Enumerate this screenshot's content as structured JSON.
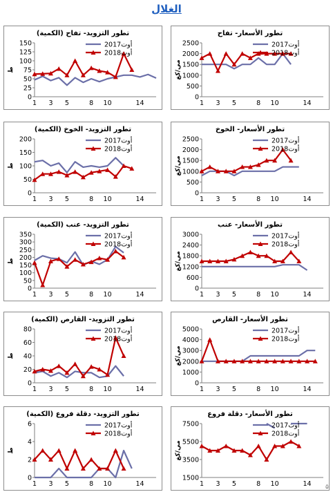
{
  "page": {
    "title": "الغلال",
    "corner_mark": "۵"
  },
  "colors": {
    "series_2017": "#6b6fa8",
    "series_2018": "#c00000",
    "title": "#1f5fbf"
  },
  "chart_data": [
    {
      "type": "line",
      "title": "تطور التزويد- تفاح (الكمية)",
      "ylabel": "ط",
      "x": [
        1,
        2,
        3,
        4,
        5,
        6,
        7,
        8,
        9,
        10,
        11,
        12,
        13,
        14,
        15,
        16
      ],
      "xticks": [
        1,
        3,
        5,
        8,
        10,
        14
      ],
      "yticks": [
        0,
        25,
        50,
        75,
        100,
        125,
        150
      ],
      "ylim": [
        0,
        150
      ],
      "legend_position": "top-right",
      "series": [
        {
          "name": "أوت2017",
          "values": [
            47,
            57,
            45,
            53,
            32,
            53,
            40,
            50,
            42,
            50,
            55,
            60,
            60,
            55,
            62,
            52
          ]
        },
        {
          "name": "أوت2018",
          "values": [
            63,
            64,
            65,
            78,
            60,
            100,
            60,
            80,
            72,
            68,
            55,
            120,
            75,
            null,
            null,
            null
          ]
        }
      ]
    },
    {
      "type": "line",
      "title": "تطور الأسعار- تفاح",
      "ylabel": "مي/كغ",
      "x": [
        1,
        2,
        3,
        4,
        5,
        6,
        7,
        8,
        9,
        10,
        11,
        12,
        13,
        14,
        15,
        16
      ],
      "xticks": [
        1,
        3,
        5,
        8,
        10,
        14
      ],
      "yticks": [
        0,
        500,
        1000,
        1500,
        2000,
        2500
      ],
      "ylim": [
        0,
        2500
      ],
      "legend_position": "top-right",
      "series": [
        {
          "name": "أوت2017",
          "values": [
            1500,
            1500,
            1500,
            1500,
            1300,
            1500,
            1500,
            1800,
            1500,
            1500,
            2000,
            1500,
            null,
            null,
            null,
            null
          ]
        },
        {
          "name": "أوت2018",
          "values": [
            1800,
            2000,
            1200,
            2000,
            1500,
            2000,
            1800,
            2000,
            2000,
            2000,
            2000,
            2000,
            null,
            null,
            null,
            null
          ]
        }
      ]
    },
    {
      "type": "line",
      "title": "تطور التزويد- الخوخ (الكمية)",
      "ylabel": "ط",
      "x": [
        1,
        2,
        3,
        4,
        5,
        6,
        7,
        8,
        9,
        10,
        11,
        12,
        13,
        14,
        15,
        16
      ],
      "xticks": [
        1,
        3,
        5,
        8,
        10,
        14
      ],
      "yticks": [
        0,
        50,
        100,
        150,
        200
      ],
      "ylim": [
        0,
        200
      ],
      "legend_position": "top-right",
      "series": [
        {
          "name": "أوت2017",
          "values": [
            115,
            120,
            100,
            110,
            75,
            115,
            95,
            100,
            95,
            100,
            130,
            100,
            null,
            null,
            null,
            null
          ]
        },
        {
          "name": "أوت2018",
          "values": [
            48,
            70,
            70,
            78,
            65,
            78,
            58,
            75,
            80,
            85,
            60,
            100,
            90,
            null,
            null,
            null
          ]
        }
      ]
    },
    {
      "type": "line",
      "title": "تطور الأسعار- الخوخ",
      "ylabel": "مي/كغ",
      "x": [
        1,
        2,
        3,
        4,
        5,
        6,
        7,
        8,
        9,
        10,
        11,
        12,
        13,
        14,
        15,
        16
      ],
      "xticks": [
        1,
        3,
        5,
        8,
        10,
        14
      ],
      "yticks": [
        0,
        500,
        1000,
        1500,
        2000,
        2500
      ],
      "ylim": [
        0,
        2500
      ],
      "legend_position": "top-right",
      "series": [
        {
          "name": "أوت2017",
          "values": [
            800,
            1000,
            1000,
            1000,
            800,
            1000,
            1000,
            1000,
            1000,
            1000,
            1200,
            1200,
            1200,
            null,
            null,
            null
          ]
        },
        {
          "name": "أوت2018",
          "values": [
            1000,
            1200,
            1000,
            1000,
            1000,
            1200,
            1200,
            1300,
            1500,
            1500,
            2000,
            1500,
            null,
            null,
            null,
            null
          ]
        }
      ]
    },
    {
      "type": "line",
      "title": "تطور التزويد- عنب (الكمية)",
      "ylabel": "ط",
      "x": [
        1,
        2,
        3,
        4,
        5,
        6,
        7,
        8,
        9,
        10,
        11,
        12,
        13,
        14,
        15,
        16
      ],
      "xticks": [
        1,
        3,
        5,
        8,
        10,
        14
      ],
      "yticks": [
        0,
        50,
        100,
        150,
        200,
        250,
        300,
        350
      ],
      "ylim": [
        0,
        350
      ],
      "legend_position": "top-right",
      "series": [
        {
          "name": "أوت2017",
          "values": [
            180,
            210,
            195,
            190,
            165,
            235,
            150,
            175,
            155,
            185,
            270,
            230,
            null,
            null,
            null,
            null
          ]
        },
        {
          "name": "أوت2018",
          "values": [
            165,
            20,
            175,
            190,
            140,
            185,
            155,
            170,
            195,
            185,
            240,
            200,
            null,
            null,
            null,
            null
          ]
        }
      ]
    },
    {
      "type": "line",
      "title": "تطور الأسعار- عنب",
      "ylabel": "مي/كغ",
      "x": [
        1,
        2,
        3,
        4,
        5,
        6,
        7,
        8,
        9,
        10,
        11,
        12,
        13,
        14,
        15,
        16
      ],
      "xticks": [
        1,
        3,
        5,
        8,
        10,
        14
      ],
      "yticks": [
        0,
        600,
        1200,
        1800,
        2400,
        3000
      ],
      "ylim": [
        0,
        3000
      ],
      "legend_position": "top-right",
      "series": [
        {
          "name": "أوت2017",
          "values": [
            1200,
            1200,
            1200,
            1200,
            1200,
            1200,
            1200,
            1200,
            1200,
            1200,
            1300,
            1300,
            1300,
            1000,
            null,
            null
          ]
        },
        {
          "name": "أوت2018",
          "values": [
            1500,
            1500,
            1500,
            1500,
            1600,
            1800,
            2000,
            1800,
            1800,
            1500,
            1500,
            2000,
            1500,
            null,
            null,
            null
          ]
        }
      ]
    },
    {
      "type": "line",
      "title": "تطور التزويد- القارص (الكمية)",
      "ylabel": "ط",
      "x": [
        1,
        2,
        3,
        4,
        5,
        6,
        7,
        8,
        9,
        10,
        11,
        12,
        13,
        14,
        15,
        16
      ],
      "xticks": [
        1,
        3,
        5,
        8,
        10,
        14
      ],
      "yticks": [
        0,
        20,
        40,
        60,
        80
      ],
      "ylim": [
        0,
        80
      ],
      "legend_position": "top-right",
      "series": [
        {
          "name": "أوت2017",
          "values": [
            15,
            17,
            10,
            15,
            8,
            17,
            15,
            15,
            8,
            10,
            25,
            10,
            null,
            null,
            null,
            null
          ]
        },
        {
          "name": "أوت2018",
          "values": [
            17,
            20,
            18,
            25,
            15,
            28,
            10,
            24,
            20,
            12,
            67,
            40,
            null,
            null,
            null,
            null
          ]
        }
      ]
    },
    {
      "type": "line",
      "title": "تطور الأسعار- القارص",
      "ylabel": "مي/كغ",
      "x": [
        1,
        2,
        3,
        4,
        5,
        6,
        7,
        8,
        9,
        10,
        11,
        12,
        13,
        14,
        15,
        16
      ],
      "xticks": [
        1,
        3,
        5,
        8,
        10,
        14
      ],
      "yticks": [
        0,
        1000,
        2000,
        3000,
        4000,
        5000
      ],
      "ylim": [
        0,
        5000
      ],
      "legend_position": "top-right",
      "series": [
        {
          "name": "أوت2017",
          "values": [
            2000,
            2000,
            2000,
            2000,
            2000,
            2000,
            2500,
            2500,
            2500,
            2500,
            2500,
            2500,
            2500,
            3000,
            3000,
            null
          ]
        },
        {
          "name": "أوت2018",
          "values": [
            2000,
            4000,
            2000,
            2000,
            2000,
            2000,
            2000,
            2000,
            2000,
            2000,
            2000,
            2000,
            2000,
            2000,
            2000,
            null
          ]
        }
      ]
    },
    {
      "type": "line",
      "title": "تطور التزويد- دقلة فروع (الكمية)",
      "ylabel": "ط",
      "x": [
        1,
        2,
        3,
        4,
        5,
        6,
        7,
        8,
        9,
        10,
        11,
        12,
        13,
        14,
        15,
        16
      ],
      "xticks": [
        1,
        3,
        5,
        8,
        10,
        14
      ],
      "yticks": [
        0,
        2,
        4,
        6
      ],
      "ylim": [
        0,
        6
      ],
      "legend_position": "top-right",
      "series": [
        {
          "name": "أوت2017",
          "values": [
            0,
            0,
            0,
            1,
            0,
            0,
            0,
            0,
            1,
            1,
            0,
            3,
            1,
            null,
            null,
            null
          ]
        },
        {
          "name": "أوت2018",
          "values": [
            2,
            3,
            2,
            3,
            1,
            3,
            1,
            2,
            1,
            1,
            3,
            1,
            null,
            null,
            null,
            null
          ]
        }
      ]
    },
    {
      "type": "line",
      "title": "تطور الأسعار- دقلة فروع",
      "ylabel": "مي/كغ",
      "x": [
        1,
        2,
        3,
        4,
        5,
        6,
        7,
        8,
        9,
        10,
        11,
        12,
        13,
        14,
        15,
        16
      ],
      "xticks": [
        1,
        3,
        5,
        8,
        10,
        14
      ],
      "yticks": [
        1500,
        3500,
        5500,
        7500
      ],
      "ylim": [
        1500,
        7500
      ],
      "legend_position": "top-right",
      "series": [
        {
          "name": "أوت2017",
          "values": [
            null,
            null,
            null,
            6500,
            null,
            null,
            null,
            null,
            7500,
            7000,
            null,
            7500,
            7500,
            7500,
            null,
            null
          ]
        },
        {
          "name": "أوت2018",
          "values": [
            5000,
            4500,
            4500,
            5000,
            4500,
            4500,
            4000,
            5000,
            3500,
            5000,
            5000,
            5500,
            5000,
            null,
            null,
            null
          ]
        }
      ]
    }
  ]
}
